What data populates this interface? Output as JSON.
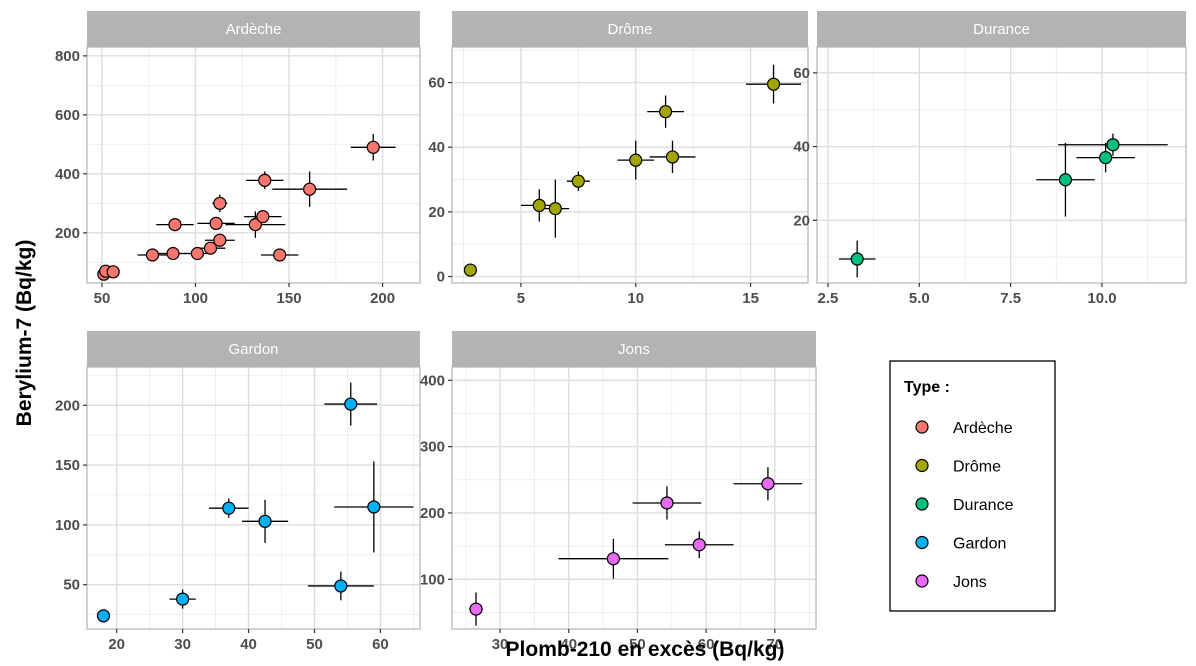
{
  "chart_data": {
    "type": "scatter",
    "xlabel": "Plomb-210 en excès (Bq/kg)",
    "ylabel": "Berylium-7 (Bq/kg)",
    "legend": {
      "title": "Type :",
      "placement": "bottom-right",
      "entries": [
        {
          "label": "Ardèche",
          "color": "#F8766D"
        },
        {
          "label": "Drôme",
          "color": "#A3A500"
        },
        {
          "label": "Durance",
          "color": "#00BF7D"
        },
        {
          "label": "Gardon",
          "color": "#00B0F6"
        },
        {
          "label": "Jons",
          "color": "#E76BF3"
        }
      ]
    },
    "grid": true,
    "panels": [
      {
        "name": "Ardèche",
        "color": "#F8766D",
        "xlim": [
          42,
          220
        ],
        "ylim": [
          30,
          830
        ],
        "xticks": [
          50,
          100,
          150,
          200
        ],
        "xtick_labels": [
          "50",
          "100",
          "150",
          "200"
        ],
        "yticks": [
          200,
          400,
          600,
          800
        ],
        "ytick_labels": [
          "200",
          "400",
          "600",
          "800"
        ],
        "points": [
          {
            "x": 51,
            "y": 60,
            "xerr": 2,
            "yerr": 12
          },
          {
            "x": 52,
            "y": 70,
            "xerr": 3,
            "yerr": 10
          },
          {
            "x": 56,
            "y": 68,
            "xerr": 3,
            "yerr": 10
          },
          {
            "x": 77,
            "y": 125,
            "xerr": 8,
            "yerr": 12
          },
          {
            "x": 88,
            "y": 130,
            "xerr": 8,
            "yerr": 15
          },
          {
            "x": 89,
            "y": 228,
            "xerr": 10,
            "yerr": 15
          },
          {
            "x": 101,
            "y": 130,
            "xerr": 8,
            "yerr": 15
          },
          {
            "x": 108,
            "y": 148,
            "xerr": 8,
            "yerr": 18
          },
          {
            "x": 111,
            "y": 232,
            "xerr": 10,
            "yerr": 20
          },
          {
            "x": 113,
            "y": 300,
            "xerr": 4,
            "yerr": 30
          },
          {
            "x": 113,
            "y": 175,
            "xerr": 8,
            "yerr": 20
          },
          {
            "x": 132,
            "y": 228,
            "xerr": 16,
            "yerr": 45
          },
          {
            "x": 136,
            "y": 255,
            "xerr": 10,
            "yerr": 20
          },
          {
            "x": 137,
            "y": 378,
            "xerr": 10,
            "yerr": 30
          },
          {
            "x": 145,
            "y": 125,
            "xerr": 10,
            "yerr": 12
          },
          {
            "x": 161,
            "y": 348,
            "xerr": 20,
            "yerr": 60
          },
          {
            "x": 195,
            "y": 490,
            "xerr": 12,
            "yerr": 45
          }
        ]
      },
      {
        "name": "Drôme",
        "color": "#A3A500",
        "xlim": [
          2,
          17.5
        ],
        "ylim": [
          -2,
          71
        ],
        "xticks": [
          5,
          10,
          15
        ],
        "xtick_labels": [
          "5",
          "10",
          "15"
        ],
        "yticks": [
          0,
          20,
          40,
          60
        ],
        "ytick_labels": [
          "0",
          "20",
          "40",
          "60"
        ],
        "points": [
          {
            "x": 2.8,
            "y": 2,
            "xerr": 0.2,
            "yerr": 1
          },
          {
            "x": 5.8,
            "y": 22,
            "xerr": 0.8,
            "yerr": 5
          },
          {
            "x": 6.5,
            "y": 21,
            "xerr": 0.6,
            "yerr": 9
          },
          {
            "x": 7.5,
            "y": 29.5,
            "xerr": 0.5,
            "yerr": 3
          },
          {
            "x": 10,
            "y": 36,
            "xerr": 0.8,
            "yerr": 6
          },
          {
            "x": 11.3,
            "y": 51,
            "xerr": 0.8,
            "yerr": 5
          },
          {
            "x": 11.6,
            "y": 37,
            "xerr": 1,
            "yerr": 5
          },
          {
            "x": 16,
            "y": 59.5,
            "xerr": 1.2,
            "yerr": 6
          }
        ]
      },
      {
        "name": "Durance",
        "color": "#00BF7D",
        "xlim": [
          2.2,
          12.3
        ],
        "ylim": [
          3,
          67
        ],
        "xticks": [
          2.5,
          5.0,
          7.5,
          10.0
        ],
        "xtick_labels": [
          "2.5",
          "5.0",
          "7.5",
          "10.0"
        ],
        "yticks": [
          20,
          40,
          60
        ],
        "ytick_labels": [
          "20",
          "40",
          "60"
        ],
        "points": [
          {
            "x": 3.3,
            "y": 9.5,
            "xerr": 0.5,
            "yerr": 5
          },
          {
            "x": 9.0,
            "y": 31,
            "xerr": 0.8,
            "yerr": 10
          },
          {
            "x": 10.1,
            "y": 37,
            "xerr": 0.8,
            "yerr": 4
          },
          {
            "x": 10.3,
            "y": 40.5,
            "xerr": 1.5,
            "yerr": 3
          }
        ]
      },
      {
        "name": "Gardon",
        "color": "#00B0F6",
        "xlim": [
          15.5,
          66
        ],
        "ylim": [
          13,
          232
        ],
        "xticks": [
          20,
          30,
          40,
          50,
          60
        ],
        "xtick_labels": [
          "20",
          "30",
          "40",
          "50",
          "60"
        ],
        "yticks": [
          50,
          100,
          150,
          200
        ],
        "ytick_labels": [
          "50",
          "100",
          "150",
          "200"
        ],
        "points": [
          {
            "x": 18,
            "y": 24,
            "xerr": 0.5,
            "yerr": 2
          },
          {
            "x": 30,
            "y": 38,
            "xerr": 2,
            "yerr": 8
          },
          {
            "x": 37,
            "y": 114,
            "xerr": 3,
            "yerr": 8
          },
          {
            "x": 42.5,
            "y": 103,
            "xerr": 3.5,
            "yerr": 18
          },
          {
            "x": 54,
            "y": 49,
            "xerr": 5,
            "yerr": 12
          },
          {
            "x": 55.5,
            "y": 201,
            "xerr": 4,
            "yerr": 18
          },
          {
            "x": 59,
            "y": 115,
            "xerr": 6,
            "yerr": 38
          }
        ]
      },
      {
        "name": "Jons",
        "color": "#E76BF3",
        "xlim": [
          23,
          76
        ],
        "ylim": [
          25,
          420
        ],
        "xticks": [
          30,
          40,
          50,
          60,
          70
        ],
        "xtick_labels": [
          "30",
          "40",
          "50",
          "60",
          "70"
        ],
        "yticks": [
          100,
          200,
          300,
          400
        ],
        "ytick_labels": [
          "100",
          "200",
          "300",
          "400"
        ],
        "points": [
          {
            "x": 26.5,
            "y": 55,
            "xerr": 1,
            "yerr": 25
          },
          {
            "x": 46.5,
            "y": 131,
            "xerr": 8,
            "yerr": 30
          },
          {
            "x": 54.3,
            "y": 215,
            "xerr": 5,
            "yerr": 25
          },
          {
            "x": 59,
            "y": 152,
            "xerr": 5,
            "yerr": 20
          },
          {
            "x": 69,
            "y": 244,
            "xerr": 5,
            "yerr": 25
          }
        ]
      }
    ]
  }
}
